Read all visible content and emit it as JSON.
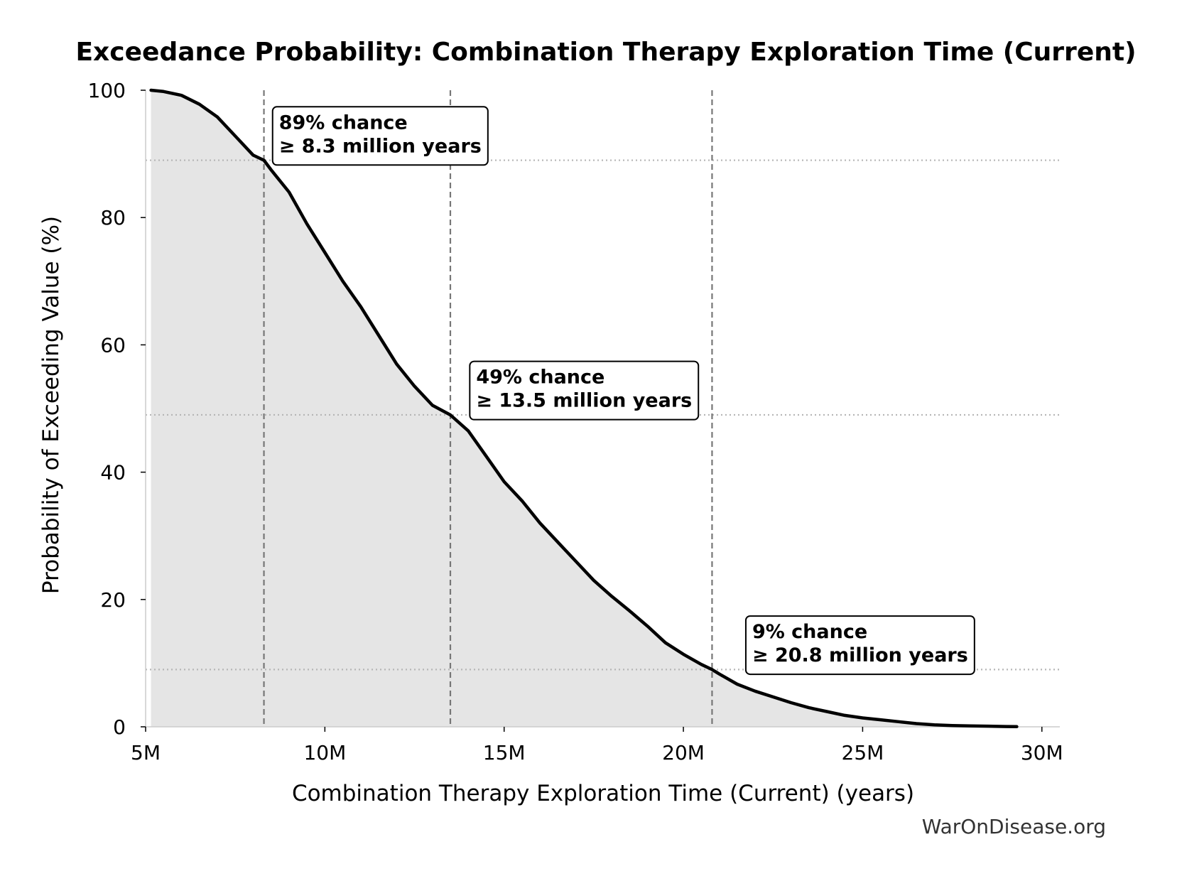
{
  "chart_data": {
    "type": "area",
    "title": "Exceedance Probability: Combination Therapy Exploration Time (Current)",
    "xlabel": "Combination Therapy Exploration Time (Current) (years)",
    "ylabel": "Probability of Exceeding Value (%)",
    "xlim": [
      5,
      30.5
    ],
    "ylim": [
      0,
      100
    ],
    "x_ticks": [
      5,
      10,
      15,
      20,
      25,
      30
    ],
    "x_tick_labels": [
      "5M",
      "10M",
      "15M",
      "20M",
      "25M",
      "30M"
    ],
    "y_ticks": [
      0,
      20,
      40,
      60,
      80,
      100
    ],
    "y_tick_labels": [
      "0",
      "20",
      "40",
      "60",
      "80",
      "100"
    ],
    "grid": false,
    "colors": {
      "line": "#000000",
      "fill": "#e5e5e5",
      "reference_line": "#777777",
      "reference_dotted": "#b5b5b5"
    },
    "series": [
      {
        "x": [
          5.15,
          5.5,
          6.0,
          6.5,
          7.0,
          7.5,
          8.0,
          8.3,
          8.5,
          9.0,
          9.5,
          10.0,
          10.5,
          11.0,
          11.5,
          12.0,
          12.5,
          13.0,
          13.5,
          14.0,
          14.5,
          15.0,
          15.5,
          16.0,
          16.5,
          17.0,
          17.5,
          18.0,
          18.5,
          19.0,
          19.5,
          20.0,
          20.5,
          20.8,
          21.0,
          21.5,
          22.0,
          22.5,
          23.0,
          23.5,
          24.0,
          24.5,
          25.0,
          25.5,
          26.0,
          26.5,
          27.0,
          27.5,
          28.0,
          28.5,
          29.0,
          29.3
        ],
        "y": [
          100,
          99.8,
          99.2,
          97.8,
          95.8,
          92.8,
          89.8,
          89,
          87.5,
          84,
          79,
          74.5,
          70,
          66,
          61.5,
          57,
          53.5,
          50.5,
          49,
          46.5,
          42.5,
          38.5,
          35.5,
          32,
          29,
          26,
          23,
          20.5,
          18.2,
          15.8,
          13.2,
          11.4,
          9.8,
          9,
          8.3,
          6.7,
          5.6,
          4.7,
          3.8,
          3.0,
          2.4,
          1.8,
          1.4,
          1.1,
          0.8,
          0.5,
          0.3,
          0.2,
          0.15,
          0.1,
          0.05,
          0.02
        ]
      }
    ],
    "reference_lines": [
      {
        "x": 8.3,
        "y": 89
      },
      {
        "x": 13.5,
        "y": 49
      },
      {
        "x": 20.8,
        "y": 9
      }
    ],
    "annotations": [
      {
        "line1": "89% chance",
        "line2": "≥ 8.3 million years",
        "anchor_x": 8.7,
        "anchor_y": 94.5
      },
      {
        "line1": "49% chance",
        "line2": "≥ 13.5 million years",
        "anchor_x": 14.2,
        "anchor_y": 54.5
      },
      {
        "line1": "9% chance",
        "line2": "≥ 20.8 million years",
        "anchor_x": 21.9,
        "anchor_y": 14.5
      }
    ],
    "watermark": "WarOnDisease.org"
  }
}
